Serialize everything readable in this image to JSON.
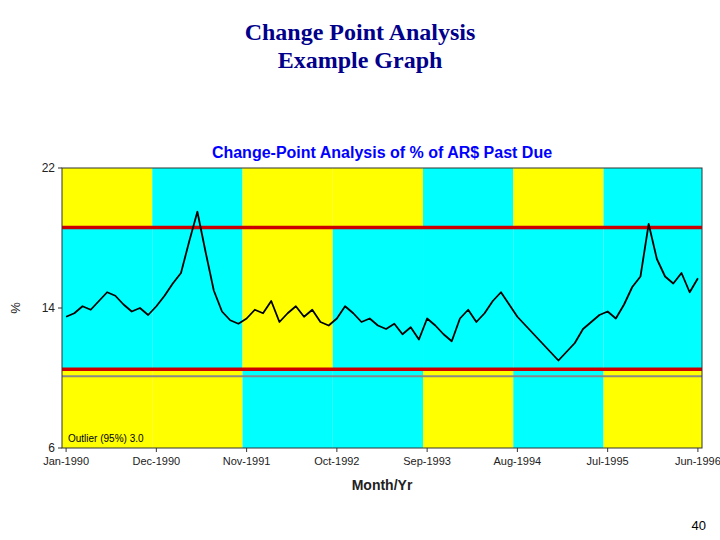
{
  "chart_data": {
    "type": "line",
    "title": "Change Point Analysis\nExample Graph",
    "title_color": "#00008B",
    "subtitle": "Change-Point Analysis of % of AR$ Past Due",
    "subtitle_color": "#0000FF",
    "x_label": "Month/Yr",
    "y_label": "%",
    "categories": [
      "Jan-1990",
      null,
      null,
      null,
      null,
      null,
      null,
      null,
      null,
      null,
      null,
      "Dec-1990",
      null,
      null,
      null,
      null,
      null,
      null,
      null,
      null,
      null,
      null,
      "Nov-1991",
      null,
      null,
      null,
      null,
      null,
      null,
      null,
      null,
      null,
      null,
      "Oct-1992",
      null,
      null,
      null,
      null,
      null,
      null,
      null,
      null,
      null,
      null,
      "Sep-1993",
      null,
      null,
      null,
      null,
      null,
      null,
      null,
      null,
      null,
      null,
      "Aug-1994",
      null,
      null,
      null,
      null,
      null,
      null,
      null,
      null,
      null,
      null,
      "Jul-1995",
      null,
      null,
      null,
      null,
      null,
      null,
      null,
      null,
      null,
      null,
      "Jun-1996"
    ],
    "series": [
      {
        "name": "% of AR$ Past Due",
        "color": "#000000",
        "values": [
          13.5,
          13.7,
          14.1,
          13.9,
          14.4,
          14.9,
          14.7,
          14.2,
          13.8,
          14.0,
          13.6,
          14.1,
          14.7,
          15.4,
          16.0,
          17.8,
          19.5,
          17.2,
          15.0,
          13.8,
          13.3,
          13.1,
          13.4,
          13.9,
          13.7,
          14.4,
          13.2,
          13.7,
          14.1,
          13.5,
          13.9,
          13.2,
          13.0,
          13.4,
          14.1,
          13.7,
          13.2,
          13.4,
          13.0,
          12.8,
          13.1,
          12.5,
          12.9,
          12.2,
          13.4,
          13.0,
          12.5,
          12.1,
          13.4,
          13.9,
          13.2,
          13.7,
          14.4,
          14.9,
          14.2,
          13.5,
          13.0,
          12.5,
          12.0,
          11.5,
          11.0,
          11.5,
          12.0,
          12.8,
          13.2,
          13.6,
          13.8,
          13.4,
          14.2,
          15.2,
          15.8,
          18.8,
          16.8,
          15.8,
          15.4,
          16.0,
          14.9,
          15.7
        ]
      }
    ],
    "ylim": [
      6,
      22
    ],
    "yticks": [
      6,
      14,
      22
    ],
    "grid": false,
    "reference_lines": [
      {
        "value": 18.6,
        "color": "#CC0000"
      },
      {
        "value": 10.5,
        "color": "#CC0000"
      },
      {
        "value": 10.1,
        "color": "#888888"
      }
    ],
    "segments": [
      {
        "start": 0,
        "end": 11,
        "colors": [
          "#FFFF00",
          "#00FFFF",
          "#FFFF00"
        ]
      },
      {
        "start": 11,
        "end": 22,
        "colors": [
          "#00FFFF",
          "#00FFFF",
          "#FFFF00"
        ]
      },
      {
        "start": 22,
        "end": 33,
        "colors": [
          "#FFFF00",
          "#FFFF00",
          "#00FFFF"
        ]
      },
      {
        "start": 33,
        "end": 44,
        "colors": [
          "#FFFF00",
          "#00FFFF",
          "#00FFFF"
        ]
      },
      {
        "start": 44,
        "end": 55,
        "colors": [
          "#00FFFF",
          "#00FFFF",
          "#FFFF00"
        ]
      },
      {
        "start": 55,
        "end": 66,
        "colors": [
          "#FFFF00",
          "#00FFFF",
          "#00FFFF"
        ]
      },
      {
        "start": 66,
        "end": 78,
        "colors": [
          "#00FFFF",
          "#00FFFF",
          "#FFFF00"
        ]
      }
    ],
    "annotations": [
      "Outlier (95%) 3.0",
      "40"
    ]
  }
}
